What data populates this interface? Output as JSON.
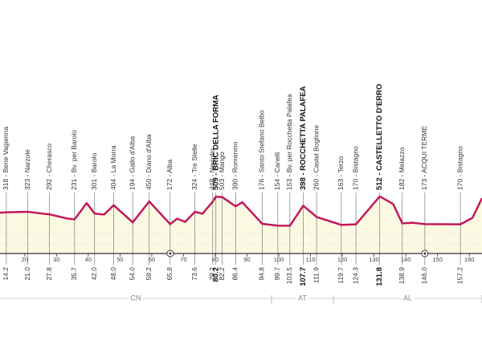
{
  "chart_data": {
    "type": "line",
    "color": "#c2185b",
    "area_color": "#fcf9e3",
    "xlim": [
      12.2,
      164
    ],
    "xticks": [
      20,
      30,
      40,
      50,
      60,
      70,
      80,
      90,
      100,
      110,
      120,
      130,
      140,
      150,
      160
    ],
    "x": [
      12,
      14.2,
      21,
      27.8,
      33.5,
      35.7,
      39.5,
      42,
      45,
      48,
      54,
      59.2,
      65.8,
      68,
      70.5,
      73.6,
      76,
      79.2,
      80.2,
      82.2,
      86.4,
      88.5,
      94.8,
      99.7,
      103.5,
      107.7,
      111.9,
      119.7,
      124.3,
      131.8,
      136,
      138.9,
      142,
      146,
      157.2,
      161,
      164
    ],
    "values": [
      310,
      318,
      323,
      292,
      240,
      231,
      430,
      301,
      290,
      404,
      194,
      450,
      172,
      240,
      200,
      324,
      300,
      448,
      509,
      503,
      390,
      440,
      176,
      154,
      153,
      398,
      260,
      163,
      170,
      512,
      420,
      182,
      190,
      173,
      170,
      250,
      490
    ],
    "waypoints": [
      {
        "label": "318 - Bene Vagienna",
        "km": {
          "value": 14.2,
          "label": "14.2"
        }
      },
      {
        "label": "323 - Narzole",
        "km": {
          "value": 21.0,
          "label": "21.0"
        }
      },
      {
        "label": "292 - Cherasco",
        "km": {
          "value": 27.8,
          "label": "27.8"
        }
      },
      {
        "label": "231 - Bv. per Barolo",
        "km": {
          "value": 35.7,
          "label": "35.7"
        }
      },
      {
        "label": "301 - Barolo",
        "km": {
          "value": 42.0,
          "label": "42.0"
        }
      },
      {
        "label": "404 - La Morra",
        "km": {
          "value": 48.0,
          "label": "48.0"
        }
      },
      {
        "label": "194 - Gallo d'Alba",
        "km": {
          "value": 54.0,
          "label": "54.0"
        }
      },
      {
        "label": "450 - Diano d'Alba",
        "km": {
          "value": 59.2,
          "label": "59.2"
        }
      },
      {
        "label": "172 - Alba",
        "km": {
          "value": 65.8,
          "label": "65.8"
        },
        "marker": true
      },
      {
        "label": "324 - Tre Stelle",
        "km": {
          "value": 73.6,
          "label": "73.6"
        }
      },
      {
        "label": "448 - Neviglio",
        "km": {
          "value": 79.2,
          "label": "79.2"
        }
      },
      {
        "label": "509 - BRIC DELLA FORMA",
        "km": {
          "value": 80.2,
          "label": "80.2"
        },
        "bold": true
      },
      {
        "label": "503 - Mango",
        "km": {
          "value": 82.2,
          "label": "82.2"
        }
      },
      {
        "label": "390 - Romanino",
        "km": {
          "value": 86.4,
          "label": "86.4"
        }
      },
      {
        "label": "176 - Santo Stefano Belbo",
        "km": {
          "value": 94.8,
          "label": "94.8"
        }
      },
      {
        "label": "154 - Canelli",
        "km": {
          "value": 99.7,
          "label": "99.7"
        }
      },
      {
        "label": "153 - Bv. per Rocchetta Palafea",
        "km": {
          "value": 103.5,
          "label": "103.5"
        }
      },
      {
        "label": "398 - ROCCHETTA PALAFEA",
        "km": {
          "value": 107.7,
          "label": "107.7"
        },
        "bold": true
      },
      {
        "label": "260 - Castel Boglione",
        "km": {
          "value": 111.9,
          "label": "111.9"
        }
      },
      {
        "label": "163 - Terzo",
        "km": {
          "value": 119.7,
          "label": "119.7"
        }
      },
      {
        "label": "170 - Bistagno",
        "km": {
          "value": 124.3,
          "label": "124.3"
        }
      },
      {
        "label": "512 - CASTELLETTO D'ERRO",
        "km": {
          "value": 131.8,
          "label": "131.8"
        },
        "bold": true
      },
      {
        "label": "182 - Melazzo",
        "km": {
          "value": 138.9,
          "label": "138.9"
        }
      },
      {
        "label": "173 - ACQUI TERME",
        "km": {
          "value": 146.0,
          "label": "146.0"
        },
        "marker": true
      },
      {
        "label": "170 - Bistagno",
        "km": {
          "value": 157.2,
          "label": "157.2"
        }
      }
    ],
    "regions": [
      {
        "label": "CN",
        "range": [
          12.2,
          97.7
        ]
      },
      {
        "label": "AT",
        "range": [
          97.7,
          117.2
        ]
      },
      {
        "label": "AL",
        "range": [
          117.2,
          164
        ]
      }
    ]
  }
}
